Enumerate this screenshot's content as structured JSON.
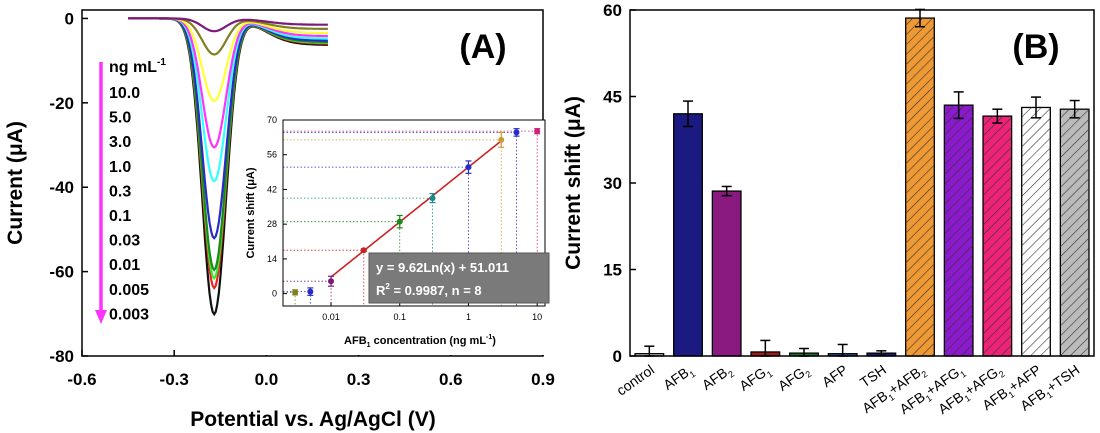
{
  "chart_data": [
    {
      "type": "line",
      "panel_label": "(A)",
      "xlabel": "Potential vs. Ag/AgCl (V)",
      "ylabel": "Current (μA)",
      "xlim": [
        -0.6,
        0.9
      ],
      "ylim": [
        -80,
        2
      ],
      "xticks": [
        "-0.6",
        "-0.3",
        "0.0",
        "0.3",
        "0.6",
        "0.9"
      ],
      "yticks": [
        "0",
        "-20",
        "-40",
        "-60",
        "-80"
      ],
      "legend_title": "ng mL",
      "legend_title_sup": "-1",
      "legend_entries": [
        "10.0",
        "5.0",
        "3.0",
        "1.0",
        "0.3",
        "0.1",
        "0.03",
        "0.01",
        "0.005",
        "0.003"
      ],
      "peak_potential": -0.17,
      "scan_range": [
        -0.45,
        0.2
      ],
      "series": [
        {
          "label": "10.0",
          "peak": -3,
          "tail": -1.5,
          "color": "#7a1a7a"
        },
        {
          "label": "5.0",
          "peak": -8.5,
          "tail": -2.5,
          "color": "#808020"
        },
        {
          "label": "3.0",
          "peak": -19.5,
          "tail": -3.5,
          "color": "#ffff33"
        },
        {
          "label": "1.0",
          "peak": -30.5,
          "tail": -4.2,
          "color": "#ff33ff"
        },
        {
          "label": "0.3",
          "peak": -38.5,
          "tail": -4.8,
          "color": "#33ffff"
        },
        {
          "label": "0.1",
          "peak": -52,
          "tail": -5.3,
          "color": "#2a2acc"
        },
        {
          "label": "0.03",
          "peak": -59.5,
          "tail": -5.6,
          "color": "#1a8a1a"
        },
        {
          "label": "0.01",
          "peak": -61.5,
          "tail": -5.8,
          "color": "#33ee33"
        },
        {
          "label": "0.005",
          "peak": -63.8,
          "tail": -6.0,
          "color": "#ee2222"
        },
        {
          "label": "0.003",
          "peak": -70,
          "tail": -6.3,
          "color": "#111111"
        }
      ],
      "inset": {
        "type": "scatter",
        "xlabel": "AFB",
        "xlabel_sub": "1",
        "xlabel_rest": " concentration (ng mL",
        "xlabel_sup": "-1",
        "xlabel_end": ")",
        "ylabel": "Current shift (μA)",
        "xscale": "log",
        "xlim": [
          0.002,
          13
        ],
        "ylim": [
          -5,
          70
        ],
        "xticks": [
          "0.01",
          "0.1",
          "1",
          "10"
        ],
        "yticks": [
          "0",
          "14",
          "28",
          "42",
          "56",
          "70"
        ],
        "fit": {
          "slope": 9.62,
          "intercept": 51.011
        },
        "equation_line1": "y = 9.62Ln(x) + 51.011",
        "equation_line2_a": "R",
        "equation_line2_sup": "2",
        "equation_line2_b": " = 0.9987, n = 8",
        "points": [
          {
            "x": 0.003,
            "y": 0.5,
            "err": 1.0,
            "color": "#808020"
          },
          {
            "x": 0.005,
            "y": 0.8,
            "err": 1.5,
            "color": "#2a2acc"
          },
          {
            "x": 0.01,
            "y": 5.0,
            "err": 2.0,
            "color": "#7a1a7a"
          },
          {
            "x": 0.03,
            "y": 17.5,
            "err": 0.5,
            "color": "#cc2222"
          },
          {
            "x": 0.1,
            "y": 29.0,
            "err": 2.5,
            "color": "#1a8a1a"
          },
          {
            "x": 0.3,
            "y": 38.5,
            "err": 1.8,
            "color": "#1a8a8a"
          },
          {
            "x": 1.0,
            "y": 51.0,
            "err": 2.5,
            "color": "#2a2acc"
          },
          {
            "x": 3.0,
            "y": 62.0,
            "err": 3.0,
            "color": "#cc9933"
          },
          {
            "x": 5.0,
            "y": 65.0,
            "err": 1.5,
            "color": "#2a2acc"
          },
          {
            "x": 10.0,
            "y": 65.5,
            "err": 1.0,
            "color": "#cc2277"
          }
        ]
      }
    },
    {
      "type": "bar",
      "panel_label": "(B)",
      "ylabel": "Current shift (μA)",
      "ylim": [
        0,
        60
      ],
      "yticks": [
        "0",
        "15",
        "30",
        "45",
        "60"
      ],
      "categories": [
        {
          "base": "control"
        },
        {
          "base": "AFB",
          "sub": "1"
        },
        {
          "base": "AFB",
          "sub": "2"
        },
        {
          "base": "AFG",
          "sub": "1"
        },
        {
          "base": "AFG",
          "sub": "2"
        },
        {
          "base": "AFP"
        },
        {
          "base": "TSH"
        },
        {
          "base": "AFB",
          "sub": "1",
          "rest": "+AFB",
          "sub2": "2"
        },
        {
          "base": "AFB",
          "sub": "1",
          "rest": "+AFG",
          "sub2": "1"
        },
        {
          "base": "AFB",
          "sub": "1",
          "rest": "+AFG",
          "sub2": "2"
        },
        {
          "base": "AFB",
          "sub": "1",
          "rest": "+AFP"
        },
        {
          "base": "AFB",
          "sub": "1",
          "rest": "+TSH"
        }
      ],
      "values": [
        0.4,
        42.0,
        28.6,
        0.7,
        0.5,
        0.4,
        0.5,
        58.6,
        43.5,
        41.6,
        43.1,
        42.8
      ],
      "errors": [
        1.3,
        2.2,
        0.8,
        2.0,
        0.8,
        1.6,
        0.4,
        1.5,
        2.3,
        1.2,
        1.8,
        1.5
      ],
      "colors": [
        "#cccccc",
        "#1a1a80",
        "#8a1a80",
        "#a01a1a",
        "#1a7a2a",
        "#2a5aaa",
        "#1a1a80",
        "#ee9933",
        "#8a1acc",
        "#ee2277",
        "#ffffff",
        "#bbbbbb"
      ],
      "hatched": [
        false,
        false,
        false,
        false,
        false,
        false,
        false,
        true,
        true,
        true,
        true,
        true
      ]
    }
  ]
}
